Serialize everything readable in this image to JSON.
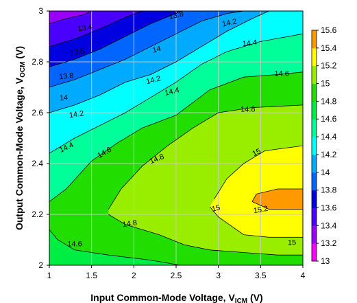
{
  "chart_data": {
    "type": "contour",
    "xlabel": "Input Common-Mode Voltage, V",
    "xlabel_sub": "ICM",
    "xlabel_unit": " (V)",
    "ylabel": "Output Common-Mode Voltage, V",
    "ylabel_sub": "OCM",
    "ylabel_unit": " (V)",
    "xlim": [
      1,
      4
    ],
    "ylim": [
      2,
      3
    ],
    "xticks": [
      "1",
      "1.5",
      "2",
      "2.5",
      "3",
      "3.5",
      "4"
    ],
    "yticks": [
      "2",
      "2.2",
      "2.4",
      "2.6",
      "2.8",
      "3"
    ],
    "grid": true,
    "colorbar": {
      "levels": [
        "13",
        "13.2",
        "13.4",
        "13.6",
        "13.8",
        "14",
        "14.2",
        "14.4",
        "14.6",
        "14.8",
        "15",
        "15.2",
        "15.4",
        "15.6"
      ],
      "colors": [
        "#ff00ff",
        "#9900ff",
        "#4a00ff",
        "#0000e0",
        "#0066ff",
        "#00aaff",
        "#00ffff",
        "#00ff99",
        "#00ee44",
        "#22dd00",
        "#99ee00",
        "#ffff00",
        "#ff9900",
        "#ff3300"
      ]
    },
    "contour_lines": [
      {
        "level": "13.4",
        "points": [
          [
            1,
            2.95
          ],
          [
            1.2,
            2.97
          ],
          [
            1.4,
            2.985
          ],
          [
            1.5,
            3
          ]
        ]
      },
      {
        "level": "13.6",
        "points": [
          [
            1,
            2.86
          ],
          [
            1.3,
            2.89
          ],
          [
            1.6,
            2.93
          ],
          [
            1.9,
            2.975
          ],
          [
            2.1,
            3
          ]
        ]
      },
      {
        "level": "13.8",
        "points": [
          [
            1,
            2.78
          ],
          [
            1.3,
            2.81
          ],
          [
            1.6,
            2.85
          ],
          [
            1.9,
            2.9
          ],
          [
            2.2,
            2.95
          ],
          [
            2.5,
            2.99
          ],
          [
            2.55,
            3
          ]
        ]
      },
      {
        "level": "14",
        "points": [
          [
            1,
            2.7
          ],
          [
            1.3,
            2.73
          ],
          [
            1.6,
            2.77
          ],
          [
            1.9,
            2.81
          ],
          [
            2.2,
            2.86
          ],
          [
            2.5,
            2.91
          ],
          [
            2.8,
            2.96
          ],
          [
            3.1,
            2.99
          ],
          [
            3.3,
            3
          ]
        ]
      },
      {
        "level": "14.2",
        "points": [
          [
            1,
            2.6
          ],
          [
            1.3,
            2.63
          ],
          [
            1.6,
            2.67
          ],
          [
            1.9,
            2.72
          ],
          [
            2.2,
            2.75
          ],
          [
            2.5,
            2.8
          ],
          [
            2.8,
            2.86
          ],
          [
            3.1,
            2.92
          ],
          [
            3.4,
            2.97
          ],
          [
            3.6,
            3
          ]
        ]
      },
      {
        "level": "14.4",
        "points": [
          [
            1,
            2.44
          ],
          [
            1.3,
            2.5
          ],
          [
            1.6,
            2.55
          ],
          [
            1.9,
            2.6
          ],
          [
            2.2,
            2.66
          ],
          [
            2.5,
            2.72
          ],
          [
            2.8,
            2.79
          ],
          [
            3.1,
            2.84
          ],
          [
            3.5,
            2.88
          ],
          [
            4,
            2.91
          ]
        ]
      },
      {
        "level": "14.6",
        "points": [
          [
            1,
            2.25
          ],
          [
            1.2,
            2.3
          ],
          [
            1.5,
            2.41
          ],
          [
            1.8,
            2.48
          ],
          [
            2.1,
            2.54
          ],
          [
            2.5,
            2.59
          ],
          [
            2.9,
            2.69
          ],
          [
            3.3,
            2.74
          ],
          [
            3.7,
            2.75
          ],
          [
            4,
            2.76
          ]
        ]
      },
      {
        "level": "14.8",
        "points": [
          [
            1.7,
            2.22
          ],
          [
            1.85,
            2.3
          ],
          [
            2.1,
            2.39
          ],
          [
            2.4,
            2.47
          ],
          [
            2.7,
            2.54
          ],
          [
            3.0,
            2.6
          ],
          [
            3.4,
            2.62
          ],
          [
            4,
            2.63
          ]
        ]
      },
      {
        "level": "15",
        "points": [
          [
            2.95,
            2.26
          ],
          [
            3.1,
            2.34
          ],
          [
            3.3,
            2.4
          ],
          [
            3.55,
            2.45
          ],
          [
            4,
            2.47
          ]
        ]
      },
      {
        "level": "15.2",
        "points": [
          [
            4,
            2.3
          ],
          [
            3.7,
            2.3
          ],
          [
            3.45,
            2.28
          ],
          [
            3.4,
            2.25
          ],
          [
            3.6,
            2.22
          ],
          [
            4,
            2.22
          ]
        ]
      },
      {
        "level": "15",
        "points": [
          [
            2.9,
            2.23
          ],
          [
            3.0,
            2.19
          ],
          [
            3.3,
            2.12
          ],
          [
            3.6,
            2.11
          ],
          [
            4,
            2.11
          ]
        ]
      },
      {
        "level": "14.8",
        "points": [
          [
            1.7,
            2.2
          ],
          [
            1.9,
            2.16
          ],
          [
            2.3,
            2.12
          ],
          [
            2.6,
            2.08
          ],
          [
            2.9,
            2.06
          ],
          [
            3.3,
            2.05
          ],
          [
            3.7,
            2.04
          ],
          [
            4,
            2.04
          ]
        ]
      },
      {
        "level": "14.6",
        "points": [
          [
            1,
            2.14
          ],
          [
            1.1,
            2.1
          ],
          [
            1.3,
            2.06
          ],
          [
            1.7,
            2.04
          ],
          [
            2.2,
            2.02
          ],
          [
            2.55,
            2.0
          ]
        ]
      }
    ],
    "labels": [
      {
        "text": "13.4",
        "x": 1.42,
        "y": 2.935,
        "angle": -8
      },
      {
        "text": "13.8",
        "x": 2.5,
        "y": 2.985,
        "angle": -12
      },
      {
        "text": "14.2",
        "x": 3.13,
        "y": 2.955,
        "angle": -12
      },
      {
        "text": "13.6",
        "x": 1.33,
        "y": 2.84,
        "angle": -8
      },
      {
        "text": "14",
        "x": 2.27,
        "y": 2.85,
        "angle": -14
      },
      {
        "text": "14.4",
        "x": 3.37,
        "y": 2.875,
        "angle": -6
      },
      {
        "text": "13.8",
        "x": 1.2,
        "y": 2.745,
        "angle": -6
      },
      {
        "text": "14.2",
        "x": 2.23,
        "y": 2.73,
        "angle": -14
      },
      {
        "text": "14.6",
        "x": 3.75,
        "y": 2.755,
        "angle": 0
      },
      {
        "text": "14",
        "x": 1.17,
        "y": 2.66,
        "angle": -6
      },
      {
        "text": "14.4",
        "x": 2.45,
        "y": 2.685,
        "angle": -14
      },
      {
        "text": "14.2",
        "x": 1.32,
        "y": 2.595,
        "angle": -8
      },
      {
        "text": "14.8",
        "x": 3.35,
        "y": 2.615,
        "angle": 0
      },
      {
        "text": "14.4",
        "x": 1.2,
        "y": 2.465,
        "angle": -25
      },
      {
        "text": "14.6",
        "x": 1.65,
        "y": 2.445,
        "angle": -30
      },
      {
        "text": "14.8",
        "x": 2.27,
        "y": 2.42,
        "angle": -22
      },
      {
        "text": "15",
        "x": 3.45,
        "y": 2.445,
        "angle": -25
      },
      {
        "text": "15",
        "x": 2.97,
        "y": 2.225,
        "angle": -15
      },
      {
        "text": "15.2",
        "x": 3.5,
        "y": 2.22,
        "angle": -10
      },
      {
        "text": "14.8",
        "x": 1.95,
        "y": 2.165,
        "angle": -8
      },
      {
        "text": "14.6",
        "x": 1.3,
        "y": 2.085,
        "angle": 0
      },
      {
        "text": "15",
        "x": 3.87,
        "y": 2.09,
        "angle": 0
      }
    ]
  }
}
